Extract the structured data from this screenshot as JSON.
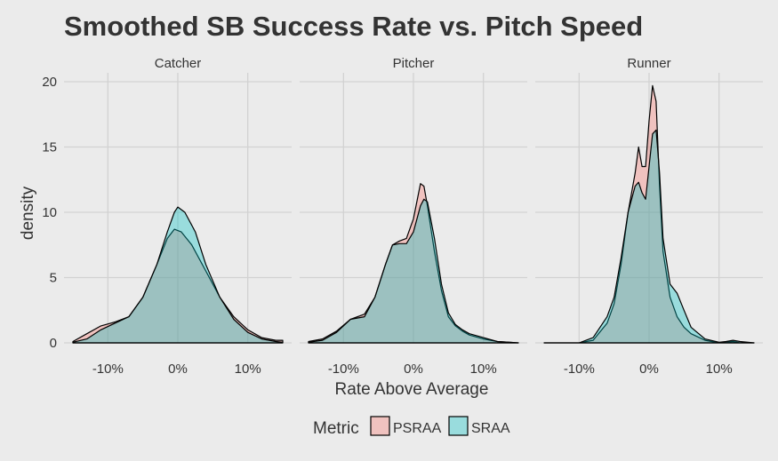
{
  "chart_data": {
    "type": "area",
    "title": "Smoothed SB Success Rate vs. Pitch Speed",
    "xlabel": "Rate Above Average",
    "ylabel": "density",
    "xlim": [
      -0.15,
      0.15
    ],
    "ylim": [
      0,
      20
    ],
    "x_ticks": [
      -0.1,
      0,
      0.1
    ],
    "x_tick_labels": [
      "-10%",
      "0%",
      "10%"
    ],
    "y_ticks": [
      0,
      5,
      10,
      15,
      20
    ],
    "y_tick_labels": [
      "0",
      "5",
      "10",
      "15",
      "20"
    ],
    "grid": true,
    "legend_position": "bottom",
    "legend_title": "Metric",
    "series_meta": [
      {
        "name": "PSRAA",
        "color": "#f8766d"
      },
      {
        "name": "SRAA",
        "color": "#00bfc4"
      }
    ],
    "panels": [
      {
        "label": "Catcher",
        "series": [
          {
            "name": "PSRAA",
            "points": [
              [
                -0.15,
                0.1
              ],
              [
                -0.13,
                0.7
              ],
              [
                -0.11,
                1.3
              ],
              [
                -0.09,
                1.6
              ],
              [
                -0.07,
                2.0
              ],
              [
                -0.05,
                3.5
              ],
              [
                -0.03,
                6.0
              ],
              [
                -0.015,
                8.0
              ],
              [
                -0.005,
                8.7
              ],
              [
                0.005,
                8.5
              ],
              [
                0.02,
                7.5
              ],
              [
                0.04,
                5.5
              ],
              [
                0.06,
                3.5
              ],
              [
                0.08,
                2.0
              ],
              [
                0.1,
                1.0
              ],
              [
                0.12,
                0.4
              ],
              [
                0.14,
                0.2
              ],
              [
                0.15,
                0.2
              ]
            ]
          },
          {
            "name": "SRAA",
            "points": [
              [
                -0.15,
                0.05
              ],
              [
                -0.13,
                0.3
              ],
              [
                -0.11,
                1.0
              ],
              [
                -0.09,
                1.5
              ],
              [
                -0.07,
                2.0
              ],
              [
                -0.05,
                3.5
              ],
              [
                -0.03,
                6.0
              ],
              [
                -0.015,
                8.5
              ],
              [
                -0.005,
                10.0
              ],
              [
                0.0,
                10.4
              ],
              [
                0.01,
                10.0
              ],
              [
                0.025,
                8.5
              ],
              [
                0.04,
                6.0
              ],
              [
                0.06,
                3.5
              ],
              [
                0.08,
                1.8
              ],
              [
                0.1,
                0.8
              ],
              [
                0.12,
                0.3
              ],
              [
                0.14,
                0.1
              ],
              [
                0.15,
                0.05
              ]
            ]
          }
        ]
      },
      {
        "label": "Pitcher",
        "series": [
          {
            "name": "PSRAA",
            "points": [
              [
                -0.15,
                0.1
              ],
              [
                -0.13,
                0.3
              ],
              [
                -0.11,
                0.9
              ],
              [
                -0.09,
                1.8
              ],
              [
                -0.07,
                2.2
              ],
              [
                -0.055,
                3.5
              ],
              [
                -0.04,
                6.0
              ],
              [
                -0.03,
                7.5
              ],
              [
                -0.02,
                7.8
              ],
              [
                -0.01,
                8.0
              ],
              [
                0.0,
                9.5
              ],
              [
                0.01,
                12.2
              ],
              [
                0.015,
                12.0
              ],
              [
                0.02,
                10.5
              ],
              [
                0.03,
                7.0
              ],
              [
                0.04,
                4.0
              ],
              [
                0.05,
                2.0
              ],
              [
                0.06,
                1.3
              ],
              [
                0.07,
                0.9
              ],
              [
                0.08,
                0.6
              ],
              [
                0.1,
                0.3
              ],
              [
                0.12,
                0.1
              ],
              [
                0.15,
                0.0
              ]
            ]
          },
          {
            "name": "SRAA",
            "points": [
              [
                -0.15,
                0.05
              ],
              [
                -0.13,
                0.2
              ],
              [
                -0.11,
                0.8
              ],
              [
                -0.09,
                1.8
              ],
              [
                -0.07,
                2.0
              ],
              [
                -0.055,
                3.5
              ],
              [
                -0.04,
                6.0
              ],
              [
                -0.03,
                7.5
              ],
              [
                -0.02,
                7.6
              ],
              [
                -0.01,
                7.6
              ],
              [
                0.0,
                8.5
              ],
              [
                0.01,
                10.5
              ],
              [
                0.015,
                11.0
              ],
              [
                0.02,
                10.8
              ],
              [
                0.03,
                8.0
              ],
              [
                0.04,
                4.5
              ],
              [
                0.05,
                2.3
              ],
              [
                0.06,
                1.4
              ],
              [
                0.07,
                1.0
              ],
              [
                0.08,
                0.7
              ],
              [
                0.1,
                0.4
              ],
              [
                0.12,
                0.1
              ],
              [
                0.15,
                0.0
              ]
            ]
          }
        ]
      },
      {
        "label": "Runner",
        "series": [
          {
            "name": "PSRAA",
            "points": [
              [
                -0.15,
                0.0
              ],
              [
                -0.1,
                0.0
              ],
              [
                -0.08,
                0.2
              ],
              [
                -0.06,
                1.5
              ],
              [
                -0.05,
                3.0
              ],
              [
                -0.04,
                6.0
              ],
              [
                -0.03,
                10.0
              ],
              [
                -0.02,
                13.0
              ],
              [
                -0.015,
                15.0
              ],
              [
                -0.01,
                13.5
              ],
              [
                -0.005,
                13.5
              ],
              [
                0.0,
                17.0
              ],
              [
                0.005,
                19.7
              ],
              [
                0.01,
                18.5
              ],
              [
                0.015,
                12.0
              ],
              [
                0.02,
                7.0
              ],
              [
                0.03,
                3.5
              ],
              [
                0.04,
                2.0
              ],
              [
                0.05,
                1.2
              ],
              [
                0.06,
                0.7
              ],
              [
                0.08,
                0.2
              ],
              [
                0.1,
                0.0
              ],
              [
                0.12,
                0.1
              ],
              [
                0.13,
                0.0
              ],
              [
                0.15,
                0.0
              ]
            ]
          },
          {
            "name": "SRAA",
            "points": [
              [
                -0.15,
                0.0
              ],
              [
                -0.1,
                0.0
              ],
              [
                -0.08,
                0.4
              ],
              [
                -0.06,
                2.0
              ],
              [
                -0.05,
                3.5
              ],
              [
                -0.04,
                6.5
              ],
              [
                -0.03,
                10.0
              ],
              [
                -0.02,
                12.0
              ],
              [
                -0.015,
                12.3
              ],
              [
                -0.01,
                11.5
              ],
              [
                -0.005,
                11.0
              ],
              [
                0.0,
                13.5
              ],
              [
                0.005,
                16.0
              ],
              [
                0.01,
                16.3
              ],
              [
                0.015,
                13.0
              ],
              [
                0.02,
                8.0
              ],
              [
                0.03,
                4.5
              ],
              [
                0.04,
                3.8
              ],
              [
                0.05,
                2.5
              ],
              [
                0.06,
                1.2
              ],
              [
                0.08,
                0.3
              ],
              [
                0.1,
                0.05
              ],
              [
                0.11,
                0.1
              ],
              [
                0.12,
                0.2
              ],
              [
                0.13,
                0.1
              ],
              [
                0.15,
                0.0
              ]
            ]
          }
        ]
      }
    ]
  }
}
